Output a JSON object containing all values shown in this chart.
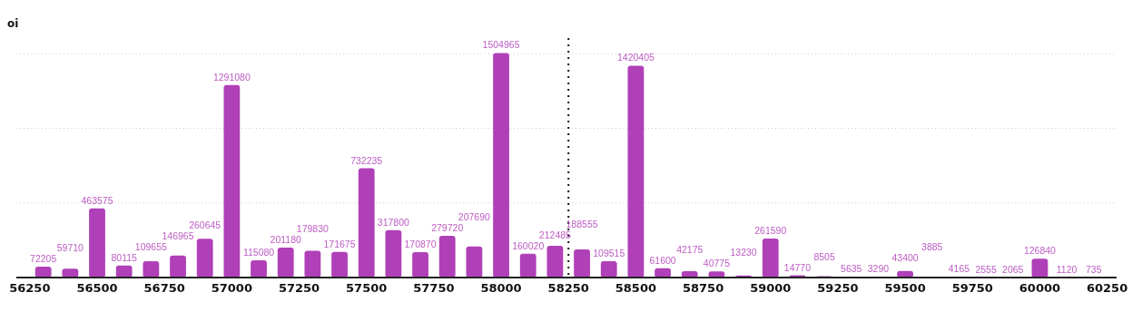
{
  "chart_data": {
    "type": "bar",
    "title": "oi",
    "x": [
      56300,
      56400,
      56500,
      56600,
      56700,
      56800,
      56900,
      57000,
      57100,
      57200,
      57300,
      57400,
      57500,
      57600,
      57700,
      57800,
      57900,
      58000,
      58100,
      58200,
      58300,
      58400,
      58500,
      58600,
      58700,
      58800,
      58900,
      59000,
      59100,
      59200,
      59300,
      59400,
      59500,
      59600,
      59700,
      59800,
      59900,
      60000,
      60100,
      60200
    ],
    "values": [
      72205,
      59710,
      463575,
      80115,
      109655,
      146965,
      260645,
      1291080,
      115080,
      201180,
      179830,
      171675,
      732235,
      317800,
      170870,
      279720,
      207690,
      1504965,
      160020,
      212485,
      188555,
      109515,
      1420405,
      61600,
      42175,
      40775,
      13230,
      261590,
      14770,
      8505,
      5635,
      3290,
      43400,
      3885,
      4165,
      2555,
      2065,
      126840,
      1120,
      735
    ],
    "color": "#b040b8",
    "data_labels": true,
    "xlim": [
      56200,
      60285
    ],
    "xticks": [
      56250,
      56500,
      56750,
      57000,
      57250,
      57500,
      57750,
      58000,
      58250,
      58500,
      58750,
      59000,
      59250,
      59500,
      59750,
      60000,
      60250
    ],
    "ylim": [
      0,
      1520000
    ],
    "yticks": [
      {
        "value": 500000,
        "label": null
      },
      {
        "value": 1000000,
        "label": null
      },
      {
        "value": 1500000,
        "label": null
      }
    ],
    "grid": "y",
    "tick_labels": "x",
    "ref_lines": [
      {
        "axis": "x",
        "value": 58250,
        "label": null,
        "color": "#111111",
        "line_style": "dotted"
      }
    ]
  }
}
